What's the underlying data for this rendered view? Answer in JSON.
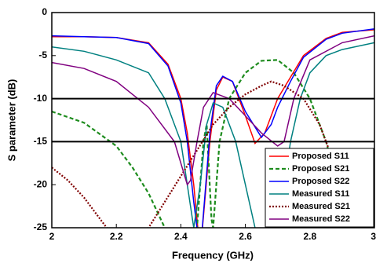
{
  "chart_data": {
    "type": "line",
    "x_label": "Frequency (GHz)",
    "y_label": "S parameter (dB)",
    "xlim": [
      2,
      3
    ],
    "ylim": [
      -25,
      0
    ],
    "xticks": [
      2,
      2.2,
      2.4,
      2.6,
      2.8,
      3
    ],
    "yticks": [
      0,
      -5,
      -10,
      -15,
      -20,
      -25
    ],
    "hlines": [
      -10,
      -15
    ],
    "legend": "lower right",
    "series": [
      {
        "name": "Proposed S11",
        "color": "#ff0000",
        "style": "solid",
        "x": [
          2.0,
          2.1,
          2.2,
          2.3,
          2.36,
          2.4,
          2.42,
          2.44,
          2.46,
          2.49,
          2.51,
          2.53,
          2.56,
          2.6,
          2.63,
          2.66,
          2.7,
          2.74,
          2.78,
          2.85,
          2.9,
          3.0
        ],
        "values": [
          -2.8,
          -2.8,
          -2.9,
          -3.5,
          -6,
          -10,
          -14,
          -20,
          -28,
          -15,
          -9,
          -7.5,
          -8,
          -12,
          -15.2,
          -14,
          -10,
          -7.5,
          -5,
          -3,
          -2.3,
          -2
        ]
      },
      {
        "name": "Proposed S21",
        "color": "#1e8c1e",
        "style": "dashed",
        "x": [
          2.0,
          2.1,
          2.2,
          2.25,
          2.3,
          2.35,
          2.38,
          2.44,
          2.47,
          2.48,
          2.495,
          2.5,
          2.52,
          2.55,
          2.6,
          2.65,
          2.7,
          2.75,
          2.8,
          2.85,
          2.9,
          2.95
        ],
        "values": [
          -11.5,
          -12.8,
          -15.5,
          -18,
          -21,
          -25,
          -28,
          -30,
          -15,
          -13,
          -24,
          -25,
          -15,
          -10,
          -7,
          -5.6,
          -5.5,
          -7,
          -10,
          -15,
          -22,
          -28
        ]
      },
      {
        "name": "Proposed S22",
        "color": "#0000ff",
        "style": "solid",
        "x": [
          2.0,
          2.1,
          2.2,
          2.3,
          2.36,
          2.4,
          2.42,
          2.44,
          2.46,
          2.49,
          2.51,
          2.53,
          2.56,
          2.6,
          2.65,
          2.68,
          2.7,
          2.74,
          2.78,
          2.85,
          2.9,
          3.0
        ],
        "values": [
          -2.7,
          -2.8,
          -2.9,
          -3.6,
          -6.2,
          -10.5,
          -15,
          -22,
          -28,
          -14,
          -8.5,
          -7.4,
          -8,
          -11.5,
          -14.5,
          -13,
          -11,
          -8,
          -5.2,
          -3.1,
          -2.4,
          -1.9
        ]
      },
      {
        "name": "Measured S11",
        "color": "#008080",
        "style": "solid",
        "x": [
          2.0,
          2.1,
          2.2,
          2.3,
          2.35,
          2.4,
          2.44,
          2.46,
          2.48,
          2.5,
          2.53,
          2.57,
          2.6,
          2.63,
          2.67,
          2.7,
          2.72,
          2.74,
          2.77,
          2.8,
          2.85,
          2.9,
          3.0
        ],
        "values": [
          -4,
          -4.5,
          -5.5,
          -7,
          -10,
          -15,
          -25,
          -20,
          -13,
          -10.5,
          -11,
          -15,
          -20,
          -25,
          -28,
          -25,
          -20,
          -15,
          -10,
          -7,
          -5,
          -4.3,
          -3.5
        ]
      },
      {
        "name": "Measured S21",
        "color": "#800000",
        "style": "dotted",
        "x": [
          2.0,
          2.05,
          2.1,
          2.15,
          2.17,
          2.25,
          2.3,
          2.35,
          2.4,
          2.45,
          2.5,
          2.55,
          2.6,
          2.65,
          2.68,
          2.72,
          2.78,
          2.83,
          2.88,
          2.93,
          2.95
        ],
        "values": [
          -18,
          -19.5,
          -21.5,
          -24,
          -25,
          -28,
          -25,
          -22,
          -19,
          -16,
          -13,
          -11,
          -9.5,
          -8.5,
          -8,
          -8.5,
          -10,
          -13,
          -18,
          -23,
          -26
        ]
      },
      {
        "name": "Measured S22",
        "color": "#800080",
        "style": "solid",
        "x": [
          2.0,
          2.1,
          2.2,
          2.3,
          2.38,
          2.42,
          2.43,
          2.45,
          2.47,
          2.5,
          2.55,
          2.6,
          2.65,
          2.7,
          2.72,
          2.75,
          2.8,
          2.9,
          3.0
        ],
        "values": [
          -5.8,
          -6.5,
          -8,
          -11,
          -15,
          -20,
          -19.5,
          -15,
          -11,
          -9.3,
          -10,
          -12,
          -14,
          -15.5,
          -15,
          -10,
          -5.5,
          -3.5,
          -2.7
        ]
      }
    ]
  }
}
